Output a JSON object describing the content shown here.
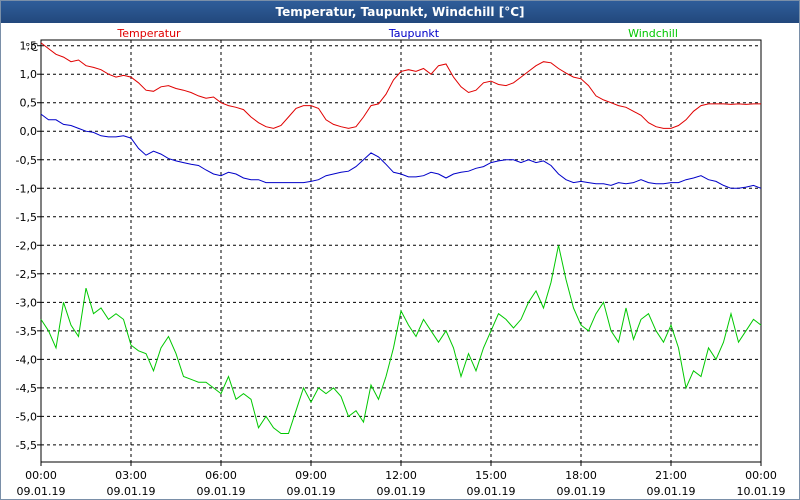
{
  "window": {
    "title": "Temperatur, Taupunkt, Windchill [°C]"
  },
  "chart_data": {
    "type": "line",
    "title": "Temperatur, Taupunkt, Windchill [°C]",
    "ylabel": "°C",
    "ylim": [
      -5.8,
      1.6
    ],
    "grid": true,
    "legend": "top",
    "y_ticks": [
      "1,5",
      "1,0",
      "0,5",
      "0,0",
      "-0,5",
      "-1,0",
      "-1,5",
      "-2,0",
      "-2,5",
      "-3,0",
      "-3,5",
      "-4,0",
      "-4,5",
      "-5,0",
      "-5,5"
    ],
    "y_tick_values": [
      1.5,
      1.0,
      0.5,
      0.0,
      -0.5,
      -1.0,
      -1.5,
      -2.0,
      -2.5,
      -3.0,
      -3.5,
      -4.0,
      -4.5,
      -5.0,
      -5.5
    ],
    "x_range_hours": [
      0,
      24
    ],
    "x_ticks": [
      {
        "h": 0,
        "time": "00:00",
        "date": "09.01.19"
      },
      {
        "h": 3,
        "time": "03:00",
        "date": "09.01.19"
      },
      {
        "h": 6,
        "time": "06:00",
        "date": "09.01.19"
      },
      {
        "h": 9,
        "time": "09:00",
        "date": "09.01.19"
      },
      {
        "h": 12,
        "time": "12:00",
        "date": "09.01.19"
      },
      {
        "h": 15,
        "time": "15:00",
        "date": "09.01.19"
      },
      {
        "h": 18,
        "time": "18:00",
        "date": "09.01.19"
      },
      {
        "h": 21,
        "time": "21:00",
        "date": "09.01.19"
      },
      {
        "h": 24,
        "time": "00:00",
        "date": "10.01.19"
      }
    ],
    "x": [
      0,
      0.25,
      0.5,
      0.75,
      1,
      1.25,
      1.5,
      1.75,
      2,
      2.25,
      2.5,
      2.75,
      3,
      3.25,
      3.5,
      3.75,
      4,
      4.25,
      4.5,
      4.75,
      5,
      5.25,
      5.5,
      5.75,
      6,
      6.25,
      6.5,
      6.75,
      7,
      7.25,
      7.5,
      7.75,
      8,
      8.25,
      8.5,
      8.75,
      9,
      9.25,
      9.5,
      9.75,
      10,
      10.25,
      10.5,
      10.75,
      11,
      11.25,
      11.5,
      11.75,
      12,
      12.25,
      12.5,
      12.75,
      13,
      13.25,
      13.5,
      13.75,
      14,
      14.25,
      14.5,
      14.75,
      15,
      15.25,
      15.5,
      15.75,
      16,
      16.25,
      16.5,
      16.75,
      17,
      17.25,
      17.5,
      17.75,
      18,
      18.25,
      18.5,
      18.75,
      19,
      19.25,
      19.5,
      19.75,
      20,
      20.25,
      20.5,
      20.75,
      21,
      21.25,
      21.5,
      21.75,
      22,
      22.25,
      22.5,
      22.75,
      23,
      23.25,
      23.5,
      23.75,
      24
    ],
    "series": [
      {
        "name": "Temperatur",
        "color": "#e00000",
        "values": [
          1.55,
          1.45,
          1.35,
          1.3,
          1.22,
          1.25,
          1.15,
          1.12,
          1.08,
          1.0,
          0.95,
          0.98,
          0.95,
          0.85,
          0.72,
          0.7,
          0.78,
          0.8,
          0.75,
          0.72,
          0.68,
          0.62,
          0.58,
          0.6,
          0.5,
          0.45,
          0.42,
          0.38,
          0.25,
          0.15,
          0.08,
          0.05,
          0.1,
          0.25,
          0.4,
          0.45,
          0.45,
          0.4,
          0.2,
          0.12,
          0.08,
          0.05,
          0.08,
          0.25,
          0.45,
          0.48,
          0.65,
          0.9,
          1.05,
          1.08,
          1.05,
          1.1,
          1.0,
          1.15,
          1.18,
          0.95,
          0.78,
          0.68,
          0.72,
          0.85,
          0.88,
          0.82,
          0.8,
          0.85,
          0.95,
          1.05,
          1.15,
          1.22,
          1.2,
          1.1,
          1.02,
          0.95,
          0.92,
          0.8,
          0.62,
          0.55,
          0.5,
          0.45,
          0.42,
          0.35,
          0.28,
          0.15,
          0.08,
          0.05,
          0.05,
          0.1,
          0.2,
          0.35,
          0.45,
          0.48,
          0.48,
          0.48,
          0.47,
          0.48,
          0.47,
          0.48,
          0.48
        ]
      },
      {
        "name": "Taupunkt",
        "color": "#0000c8",
        "values": [
          0.3,
          0.2,
          0.2,
          0.12,
          0.1,
          0.05,
          0.0,
          -0.02,
          -0.08,
          -0.1,
          -0.1,
          -0.08,
          -0.12,
          -0.3,
          -0.42,
          -0.35,
          -0.4,
          -0.48,
          -0.52,
          -0.55,
          -0.58,
          -0.6,
          -0.68,
          -0.75,
          -0.78,
          -0.72,
          -0.75,
          -0.82,
          -0.85,
          -0.85,
          -0.9,
          -0.9,
          -0.9,
          -0.9,
          -0.9,
          -0.9,
          -0.88,
          -0.85,
          -0.78,
          -0.75,
          -0.72,
          -0.7,
          -0.62,
          -0.5,
          -0.38,
          -0.45,
          -0.58,
          -0.72,
          -0.75,
          -0.8,
          -0.8,
          -0.78,
          -0.72,
          -0.75,
          -0.82,
          -0.75,
          -0.72,
          -0.7,
          -0.65,
          -0.62,
          -0.55,
          -0.52,
          -0.5,
          -0.5,
          -0.55,
          -0.5,
          -0.55,
          -0.52,
          -0.6,
          -0.75,
          -0.85,
          -0.9,
          -0.88,
          -0.9,
          -0.92,
          -0.92,
          -0.95,
          -0.9,
          -0.92,
          -0.9,
          -0.85,
          -0.9,
          -0.92,
          -0.92,
          -0.9,
          -0.9,
          -0.85,
          -0.82,
          -0.78,
          -0.85,
          -0.88,
          -0.95,
          -1.0,
          -1.0,
          -0.98,
          -0.95,
          -1.0
        ]
      },
      {
        "name": "Windchill",
        "color": "#00c800",
        "values": [
          -3.3,
          -3.5,
          -3.8,
          -3.0,
          -3.4,
          -3.6,
          -2.75,
          -3.2,
          -3.1,
          -3.3,
          -3.2,
          -3.3,
          -3.75,
          -3.85,
          -3.9,
          -4.2,
          -3.8,
          -3.6,
          -3.9,
          -4.3,
          -4.35,
          -4.4,
          -4.4,
          -4.5,
          -4.6,
          -4.3,
          -4.7,
          -4.6,
          -4.7,
          -5.2,
          -5.0,
          -5.2,
          -5.3,
          -5.3,
          -4.9,
          -4.5,
          -4.75,
          -4.5,
          -4.6,
          -4.5,
          -4.65,
          -5.0,
          -4.9,
          -5.1,
          -4.45,
          -4.7,
          -4.3,
          -3.8,
          -3.15,
          -3.4,
          -3.6,
          -3.3,
          -3.5,
          -3.7,
          -3.5,
          -3.8,
          -4.3,
          -3.9,
          -4.2,
          -3.8,
          -3.5,
          -3.2,
          -3.3,
          -3.45,
          -3.3,
          -3.0,
          -2.8,
          -3.1,
          -2.65,
          -2.0,
          -2.6,
          -3.1,
          -3.4,
          -3.5,
          -3.2,
          -3.0,
          -3.5,
          -3.7,
          -3.1,
          -3.65,
          -3.3,
          -3.2,
          -3.5,
          -3.7,
          -3.4,
          -3.8,
          -4.5,
          -4.2,
          -4.3,
          -3.8,
          -4.0,
          -3.7,
          -3.2,
          -3.7,
          -3.5,
          -3.3,
          -3.4
        ]
      }
    ]
  }
}
